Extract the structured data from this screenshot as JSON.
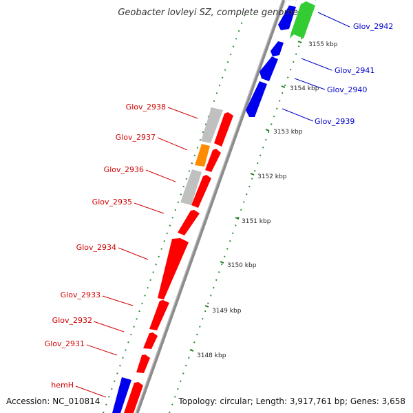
{
  "title": "Geobacter lovleyi SZ, complete genome",
  "footer": {
    "accession": "Accession: NC_010814",
    "topology": "Topology: circular; Length: 3,917,761 bp; Genes: 3,658"
  },
  "colors": {
    "forward_label": "#d10000",
    "reverse_label": "#0000cc",
    "backbone": "#9a9a9a",
    "tick": "#1e7a1e"
  },
  "ticks": [
    "3148 kbp",
    "3149 kbp",
    "3150 kbp",
    "3151 kbp",
    "3152 kbp",
    "3153 kbp",
    "3154 kbp",
    "3155 kbp"
  ],
  "genes_reverse": [
    {
      "name": "Glov_2942",
      "color": "#33cc33"
    },
    {
      "name": "Glov_2941",
      "color": "#0000ee"
    },
    {
      "name": "Glov_2940",
      "color": "#0000ee"
    },
    {
      "name": "Glov_2939",
      "color": "#0000ee"
    }
  ],
  "genes_forward": [
    {
      "name": "Glov_2938",
      "color": "#ff0000"
    },
    {
      "name": "Glov_2937",
      "color": "#ff8c00"
    },
    {
      "name": "Glov_2936",
      "color": "#ff0000"
    },
    {
      "name": "Glov_2935",
      "color": "#ff0000"
    },
    {
      "name": "Glov_2934",
      "color": "#ff0000"
    },
    {
      "name": "Glov_2933",
      "color": "#ff0000"
    },
    {
      "name": "Glov_2932",
      "color": "#ff0000"
    },
    {
      "name": "Glov_2931",
      "color": "#ff0000"
    },
    {
      "name": "hemH",
      "color": "#ff0000"
    }
  ]
}
